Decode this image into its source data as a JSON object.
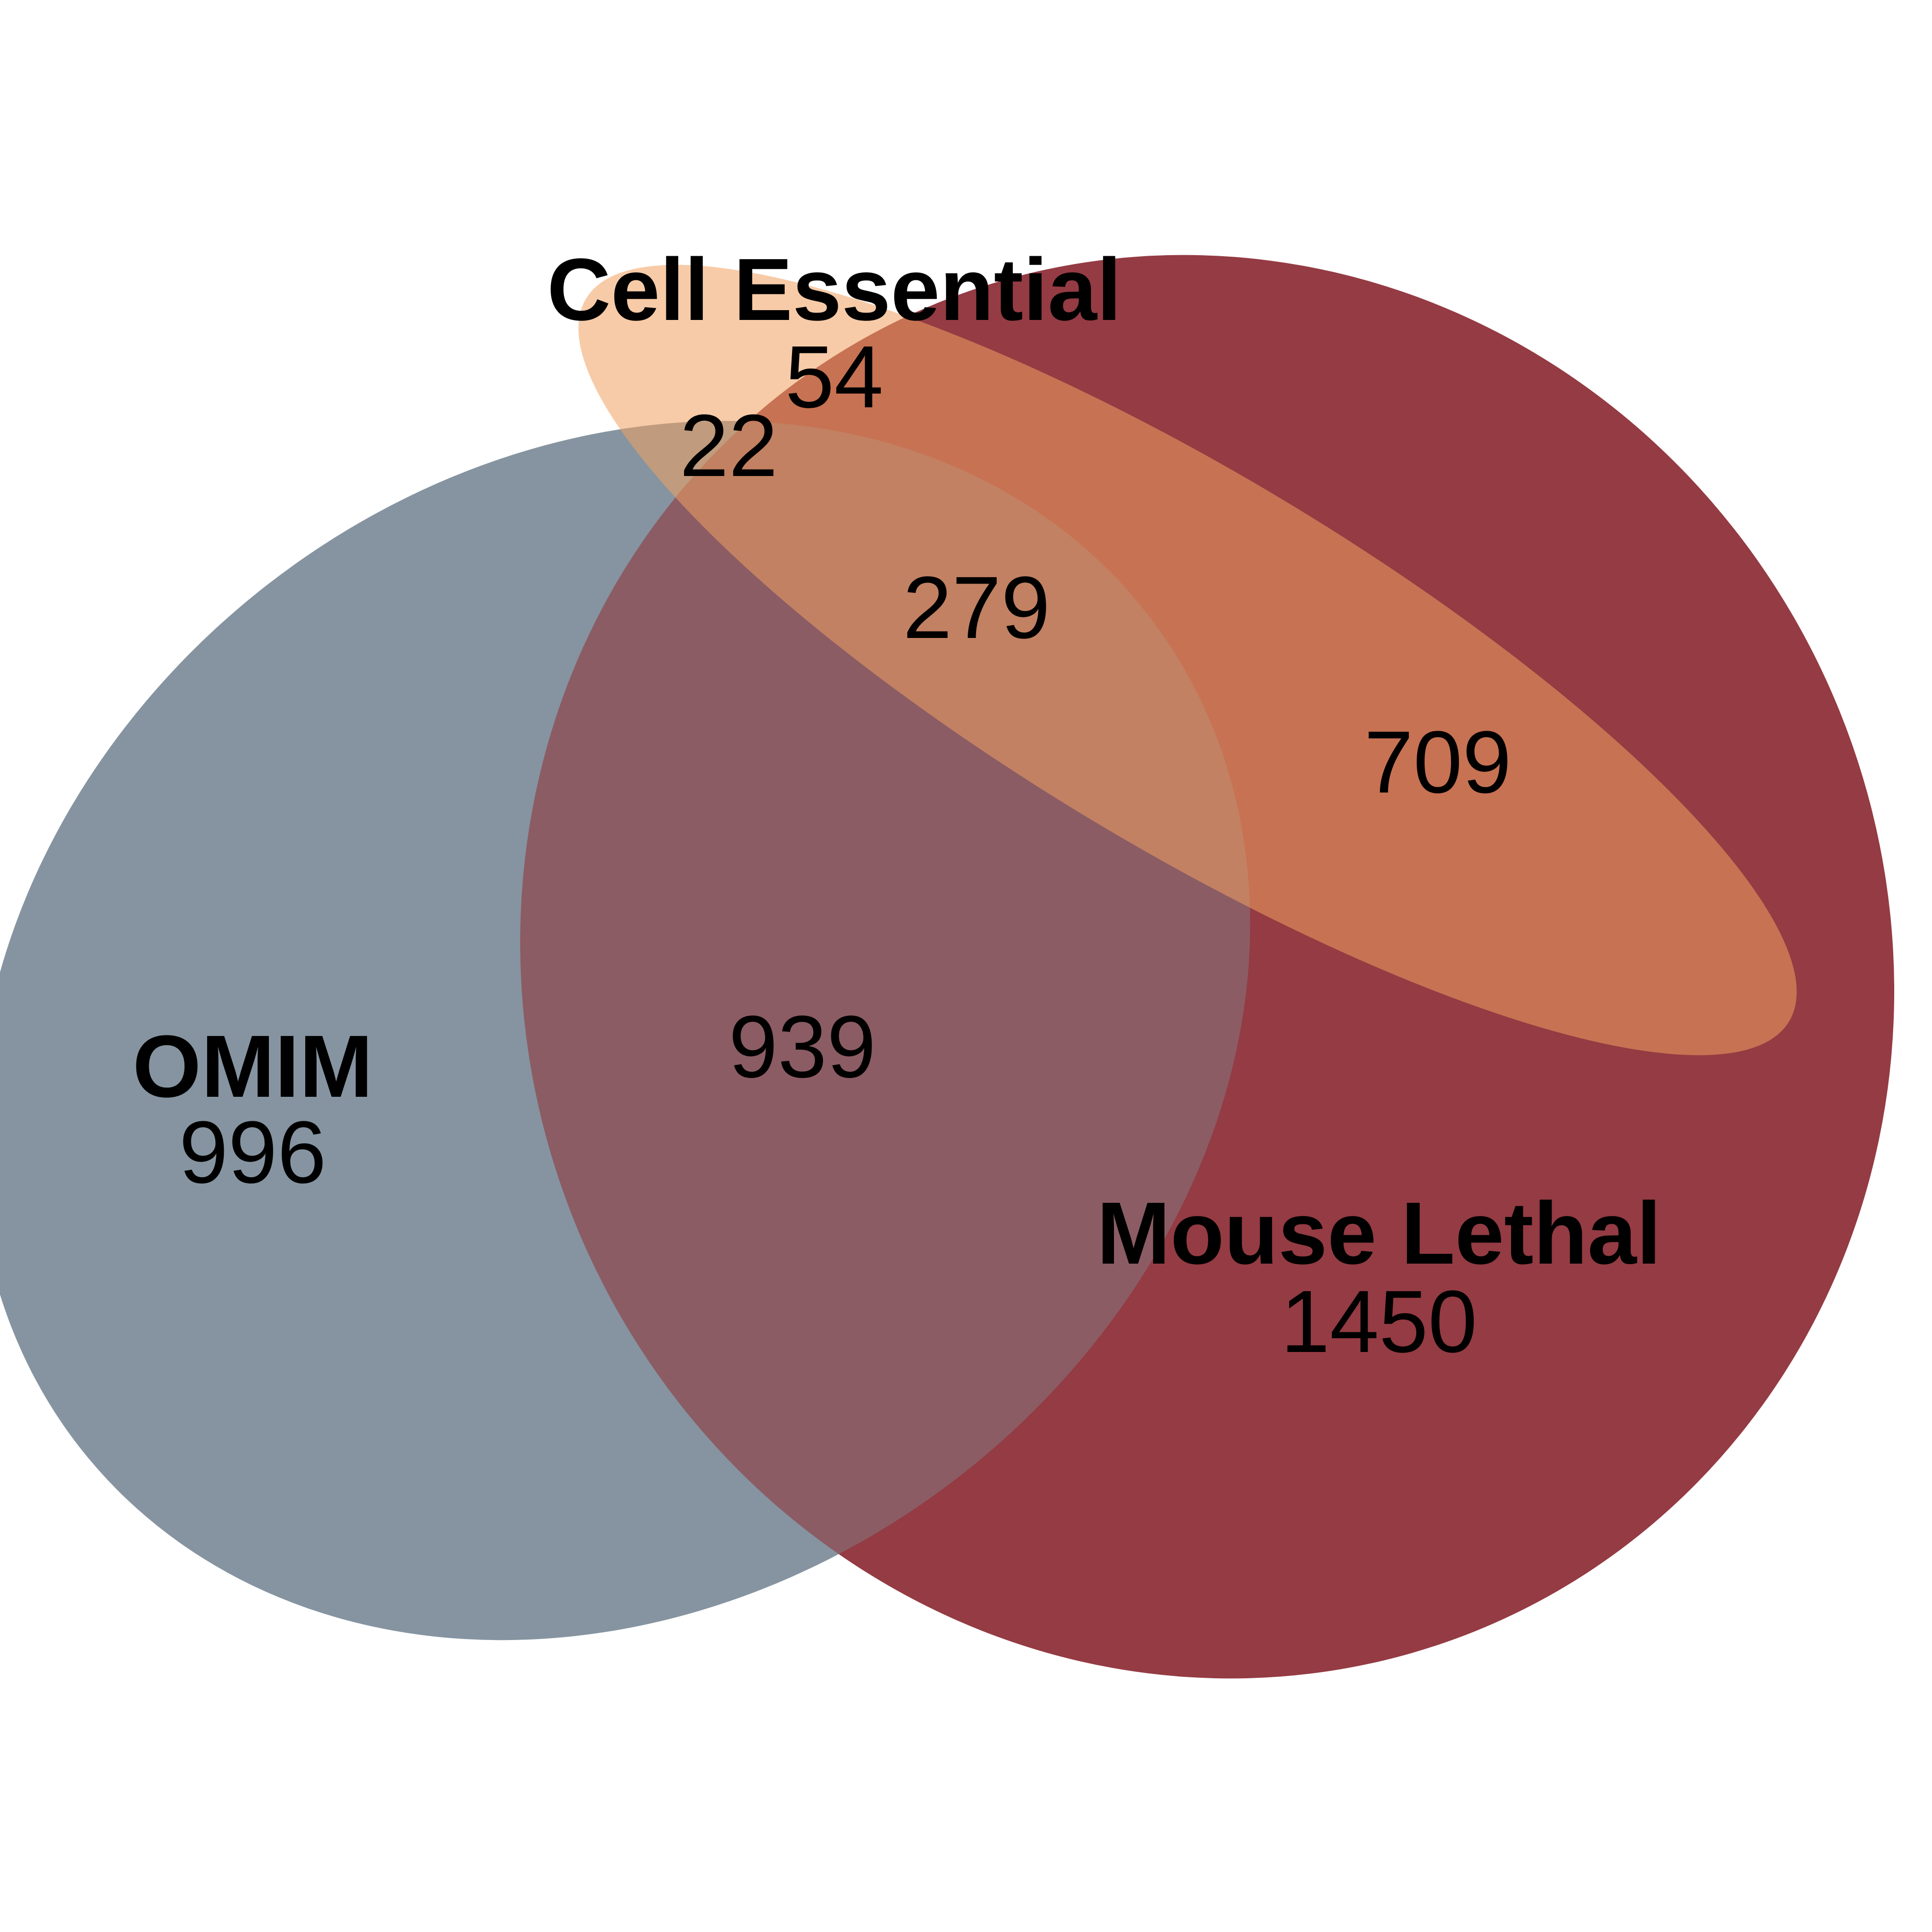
{
  "diagram": {
    "type": "venn",
    "sets": [
      {
        "key": "omim",
        "name": "OMIM",
        "total": "996",
        "color": "#6b7a8c"
      },
      {
        "key": "mouse",
        "name": "Mouse Lethal",
        "total": "1450",
        "color": "#8b2a33"
      },
      {
        "key": "cell",
        "name": "Cell Essential",
        "total": "54",
        "color": "#f0a060"
      }
    ],
    "regions": {
      "omim_cell_only": "22",
      "all_three": "279",
      "mouse_cell_only": "709",
      "omim_mouse_only": "939"
    }
  }
}
